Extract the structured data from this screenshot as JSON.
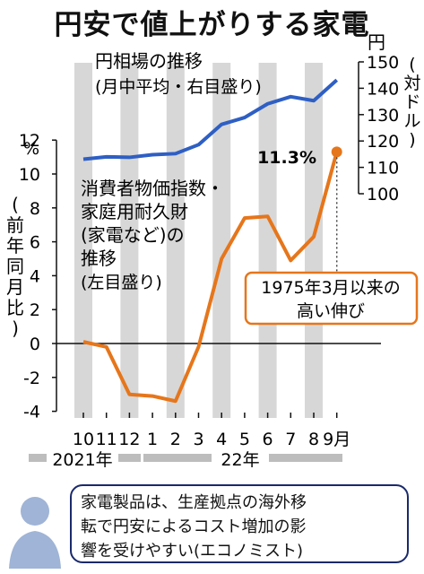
{
  "title": "円安で値上がりする家電",
  "colors": {
    "yen_line": "#2e5fc4",
    "cpi_line": "#e6761b",
    "band": "#d7d7d7",
    "callout_border": "#e6761b",
    "note_border": "#1a2a6b"
  },
  "chart_data": {
    "type": "line",
    "categories": [
      "10",
      "11",
      "12",
      "1",
      "2",
      "3",
      "4",
      "5",
      "6",
      "7",
      "8",
      "9月"
    ],
    "year_labels": [
      "2021年",
      "22年"
    ],
    "left_axis": {
      "unit": "%",
      "label": "前年同月比",
      "ticks": [
        "-4",
        "-2",
        "0",
        "2",
        "4",
        "6",
        "8",
        "10",
        "12"
      ],
      "ylim": [
        -4,
        12
      ]
    },
    "right_axis": {
      "unit": "円",
      "label": "対ドル",
      "ticks": [
        "100",
        "110",
        "120",
        "130",
        "140",
        "150"
      ],
      "ylim": [
        100,
        150
      ]
    },
    "series": [
      {
        "name": "円相場の推移",
        "sub": "(月中平均・右目盛り)",
        "axis": "right",
        "values": [
          113.1,
          114.0,
          113.8,
          114.8,
          115.2,
          118.6,
          126.3,
          128.9,
          134.1,
          136.8,
          135.3,
          143.1
        ]
      },
      {
        "name": "消費者物価指数・家庭用耐久財(家電など)の推移",
        "name_lines": [
          "消費者物価指数・",
          "家庭用耐久財",
          "(家電など)の",
          "推移"
        ],
        "sub": "(左目盛り)",
        "axis": "left",
        "values": [
          0.1,
          -0.2,
          -3.0,
          -3.1,
          -3.4,
          -0.2,
          5.0,
          7.4,
          7.5,
          4.9,
          6.3,
          11.3
        ]
      }
    ],
    "annotations": {
      "last_value_label": "11.3%",
      "callout_lines": [
        "1975年3月以来の",
        "高い伸び"
      ]
    }
  },
  "note_lines": [
    "家電製品は、生産拠点の海外移",
    "転で円安によるコスト増加の影",
    "響を受けやすい(エコノミスト)"
  ]
}
